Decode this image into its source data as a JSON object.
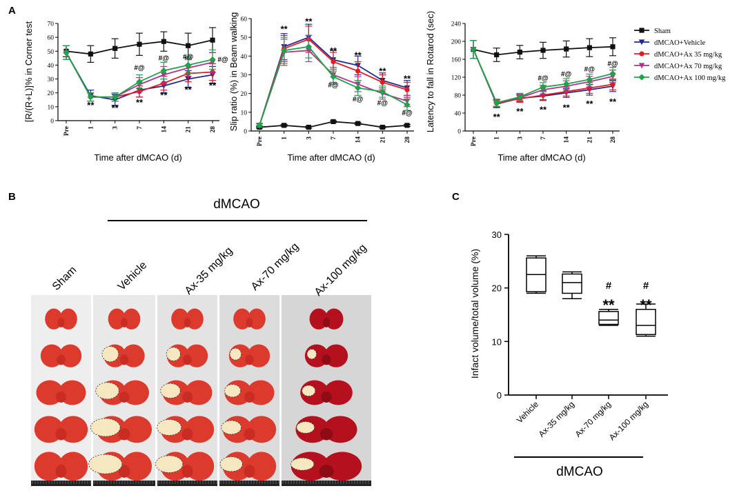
{
  "panels": {
    "a": "A",
    "b": "B",
    "c": "C"
  },
  "legend": [
    {
      "name": "Sham",
      "color": "#111111",
      "marker": "square"
    },
    {
      "name": "dMCAO+Vehicle",
      "color": "#1f2a8c",
      "marker": "triangle-down"
    },
    {
      "name": "dMCAO+Ax 35 mg/kg",
      "color": "#e01b24",
      "marker": "circle"
    },
    {
      "name": "dMCAO+Ax 70 mg/kg",
      "color": "#b0338f",
      "marker": "triangle-down"
    },
    {
      "name": "dMCAO+Ax 100 mg/kg",
      "color": "#1fa34a",
      "marker": "diamond"
    }
  ],
  "chart_data": [
    {
      "id": "corner",
      "type": "line",
      "title": "",
      "xlabel": "Time after dMCAO (d)",
      "ylabel": "[R/(R+L)]% in Corner test",
      "categories": [
        "Pre",
        "1",
        "3",
        "7",
        "14",
        "21",
        "28"
      ],
      "ylim": [
        0,
        70
      ],
      "yticks": [
        0,
        10,
        20,
        30,
        40,
        50,
        60,
        70
      ],
      "series": [
        {
          "name": "Sham",
          "values": [
            50,
            48,
            52,
            55,
            57,
            54,
            58
          ],
          "errors": [
            4,
            6,
            7,
            8,
            7,
            9,
            9
          ]
        },
        {
          "name": "dMCAO+Vehicle",
          "values": [
            49,
            18,
            15,
            22,
            25,
            30,
            33
          ],
          "errors": [
            5,
            4,
            4,
            5,
            5,
            6,
            6
          ]
        },
        {
          "name": "dMCAO+Ax 35 mg/kg",
          "values": [
            49,
            17,
            17,
            21,
            27,
            34,
            35
          ],
          "errors": [
            5,
            3,
            3,
            4,
            5,
            6,
            6
          ]
        },
        {
          "name": "dMCAO+Ax 70 mg/kg",
          "values": [
            49,
            17,
            17,
            26,
            33,
            38,
            42
          ],
          "errors": [
            5,
            3,
            3,
            5,
            6,
            6,
            7
          ]
        },
        {
          "name": "dMCAO+Ax 100 mg/kg",
          "values": [
            49,
            17,
            17,
            28,
            36,
            40,
            44
          ],
          "errors": [
            5,
            3,
            3,
            5,
            6,
            6,
            7
          ]
        }
      ],
      "annotations": [
        {
          "category": "1",
          "text": "**",
          "value": 12,
          "size": "big"
        },
        {
          "category": "3",
          "text": "**",
          "value": 10,
          "size": "big"
        },
        {
          "category": "7",
          "text": "**",
          "value": 14,
          "size": "big"
        },
        {
          "category": "14",
          "text": "**",
          "value": 19,
          "size": "big"
        },
        {
          "category": "21",
          "text": "**",
          "value": 23,
          "size": "big"
        },
        {
          "category": "28",
          "text": "**",
          "value": 26,
          "size": "big"
        },
        {
          "category": "7",
          "text": "#@",
          "value": 38,
          "size": "small"
        },
        {
          "category": "14",
          "text": "#@",
          "value": 45,
          "size": "small"
        },
        {
          "category": "21",
          "text": "#@",
          "value": 46,
          "size": "small"
        },
        {
          "category": "28",
          "text": "#@",
          "value": 44,
          "size": "small",
          "dx": 15
        }
      ]
    },
    {
      "id": "beam",
      "type": "line",
      "title": "",
      "xlabel": "Time after dMCAO (d)",
      "ylabel": "Slip ratio (%) in Beam walking",
      "categories": [
        "Pre",
        "1",
        "3",
        "7",
        "14",
        "21",
        "28"
      ],
      "ylim": [
        0,
        60
      ],
      "yticks": [
        0,
        10,
        20,
        30,
        40,
        50,
        60
      ],
      "series": [
        {
          "name": "Sham",
          "values": [
            2,
            3,
            2,
            5,
            4,
            2,
            3
          ],
          "errors": [
            0.5,
            0.5,
            0.5,
            0.5,
            0.5,
            0.5,
            0.5
          ]
        },
        {
          "name": "dMCAO+Vehicle",
          "values": [
            3,
            45,
            50,
            38,
            35,
            27,
            23
          ],
          "errors": [
            1,
            7,
            7,
            5,
            5,
            4,
            4
          ]
        },
        {
          "name": "dMCAO+Ax 35 mg/kg",
          "values": [
            3,
            44,
            49,
            37,
            32,
            26,
            22
          ],
          "errors": [
            1,
            7,
            7,
            5,
            5,
            4,
            4
          ]
        },
        {
          "name": "dMCAO+Ax 70 mg/kg",
          "values": [
            3,
            42,
            43,
            30,
            25,
            20,
            16
          ],
          "errors": [
            1,
            7,
            6,
            4,
            4,
            3,
            3
          ]
        },
        {
          "name": "dMCAO+Ax 100 mg/kg",
          "values": [
            3,
            43,
            45,
            29,
            23,
            21,
            14
          ],
          "errors": [
            1,
            7,
            6,
            4,
            4,
            3,
            3
          ]
        }
      ],
      "annotations": [
        {
          "category": "1",
          "text": "**",
          "value": 55,
          "size": "big"
        },
        {
          "category": "3",
          "text": "**",
          "value": 59,
          "size": "big"
        },
        {
          "category": "7",
          "text": "**",
          "value": 43.5,
          "size": "big"
        },
        {
          "category": "14",
          "text": "**",
          "value": 41,
          "size": "big"
        },
        {
          "category": "21",
          "text": "**",
          "value": 32.5,
          "size": "big"
        },
        {
          "category": "28",
          "text": "**",
          "value": 28.5,
          "size": "big"
        },
        {
          "category": "7",
          "text": "#@",
          "value": 24.5,
          "size": "small"
        },
        {
          "category": "14",
          "text": "#@",
          "value": 17,
          "size": "small"
        },
        {
          "category": "21",
          "text": "#@",
          "value": 15,
          "size": "small"
        },
        {
          "category": "28",
          "text": "#@",
          "value": 9.5,
          "size": "small"
        }
      ]
    },
    {
      "id": "rotarod",
      "type": "line",
      "title": "",
      "xlabel": "Time after dMCAO (d)",
      "ylabel": "Latency to fall in Rotarod (sec)",
      "categories": [
        "Pre",
        "1",
        "3",
        "7",
        "14",
        "21",
        "28"
      ],
      "ylim": [
        0,
        240
      ],
      "yticks": [
        0,
        40,
        80,
        120,
        160,
        200,
        240
      ],
      "series": [
        {
          "name": "Sham",
          "values": [
            182,
            170,
            176,
            180,
            183,
            186,
            188
          ],
          "errors": [
            20,
            15,
            15,
            18,
            18,
            20,
            20
          ]
        },
        {
          "name": "dMCAO+Vehicle",
          "values": [
            182,
            60,
            73,
            78,
            85,
            92,
            100
          ],
          "errors": [
            20,
            8,
            8,
            10,
            10,
            12,
            12
          ]
        },
        {
          "name": "dMCAO+Ax 35 mg/kg",
          "values": [
            182,
            62,
            72,
            80,
            88,
            96,
            104
          ],
          "errors": [
            20,
            8,
            8,
            10,
            10,
            12,
            12
          ]
        },
        {
          "name": "dMCAO+Ax 70 mg/kg",
          "values": [
            182,
            63,
            74,
            92,
            100,
            110,
            122
          ],
          "errors": [
            20,
            8,
            8,
            10,
            12,
            12,
            14
          ]
        },
        {
          "name": "dMCAO+Ax 100 mg/kg",
          "values": [
            182,
            63,
            76,
            98,
            105,
            115,
            128
          ],
          "errors": [
            20,
            8,
            8,
            10,
            12,
            12,
            14
          ]
        }
      ],
      "annotations": [
        {
          "category": "1",
          "text": "**",
          "value": 34,
          "size": "big"
        },
        {
          "category": "3",
          "text": "**",
          "value": 46,
          "size": "big"
        },
        {
          "category": "7",
          "text": "**",
          "value": 50,
          "size": "big"
        },
        {
          "category": "14",
          "text": "**",
          "value": 55,
          "size": "big"
        },
        {
          "category": "21",
          "text": "**",
          "value": 63,
          "size": "big"
        },
        {
          "category": "28",
          "text": "**",
          "value": 68,
          "size": "big"
        },
        {
          "category": "7",
          "text": "#@",
          "value": 118,
          "size": "small"
        },
        {
          "category": "14",
          "text": "#@",
          "value": 127,
          "size": "small"
        },
        {
          "category": "21",
          "text": "#@",
          "value": 138,
          "size": "small"
        },
        {
          "category": "28",
          "text": "#@",
          "value": 150,
          "size": "small"
        }
      ]
    },
    {
      "id": "infarct",
      "type": "box",
      "title": "",
      "xlabel": "",
      "ylabel": "Infact volume/total volume (%)",
      "categories": [
        "Vehicle",
        "Ax-35 mg/kg",
        "Ax-70 mg/kg",
        "Ax-100 mg/kg"
      ],
      "group_label": "dMCAO",
      "ylim": [
        0,
        30
      ],
      "yticks": [
        0,
        10,
        20,
        30
      ],
      "boxes": [
        {
          "min": 19,
          "q1": 19.3,
          "median": 22.5,
          "q3": 25.6,
          "max": 26
        },
        {
          "min": 18,
          "q1": 19,
          "median": 21,
          "q3": 22.6,
          "max": 23
        },
        {
          "min": 13,
          "q1": 13.2,
          "median": 14,
          "q3": 15.6,
          "max": 16
        },
        {
          "min": 11,
          "q1": 11.3,
          "median": 13,
          "q3": 16,
          "max": 17
        }
      ],
      "annotations": [
        {
          "category": "Ax-70 mg/kg",
          "text": "#",
          "value": 20.6
        },
        {
          "category": "Ax-70 mg/kg",
          "text": "**",
          "value": 17.4
        },
        {
          "category": "Ax-100 mg/kg",
          "text": "#",
          "value": 20.6
        },
        {
          "category": "Ax-100 mg/kg",
          "text": "**",
          "value": 17.4
        }
      ]
    }
  ],
  "photos": {
    "group_label": "dMCAO",
    "labels": [
      "Sham",
      "Vehicle",
      "Ax-35 mg/kg",
      "Ax-70 mg/kg",
      "Ax-100 mg/kg"
    ],
    "slices_per_column": 5,
    "infarct_level": [
      0,
      4,
      3,
      2,
      1
    ]
  }
}
